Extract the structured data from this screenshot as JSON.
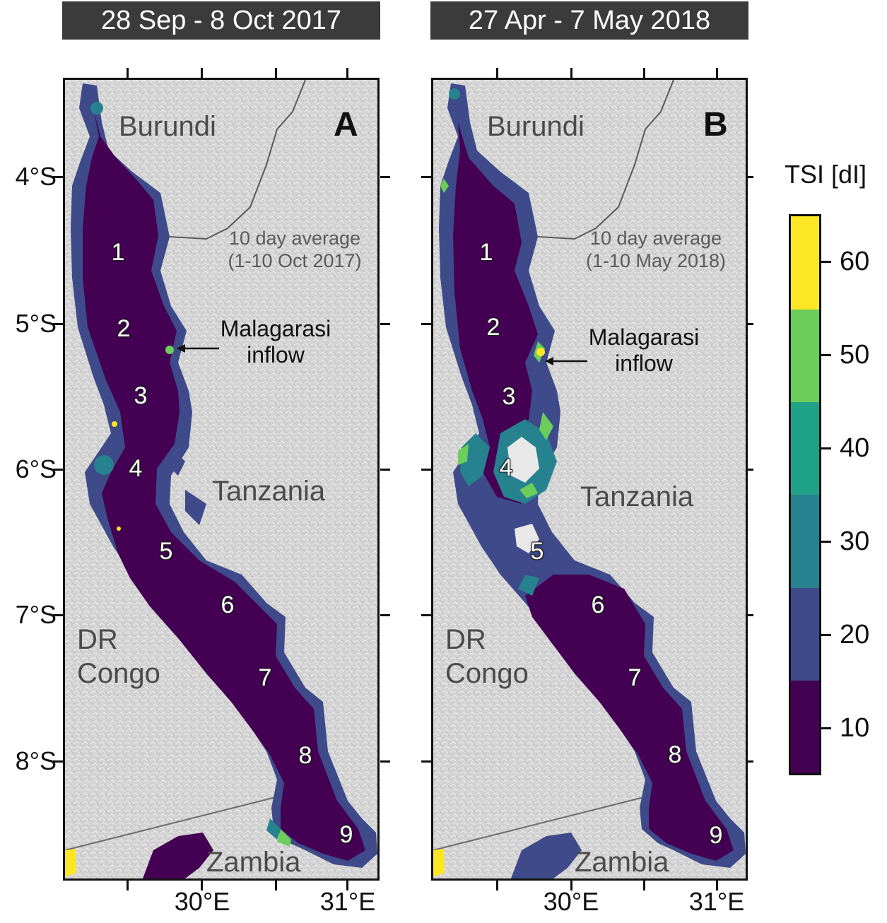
{
  "panels": [
    {
      "period": "28 Sep - 8 Oct 2017",
      "letter": "A",
      "note_line1": "10 day average",
      "note_line2": "(1-10 Oct 2017)",
      "inflow_line1": "Malagarasi",
      "inflow_line2": "inflow"
    },
    {
      "period": "27 Apr - 7 May 2018",
      "letter": "B",
      "note_line1": "10 day average",
      "note_line2": "(1-10 May 2018)",
      "inflow_line1": "Malagarasi",
      "inflow_line2": "inflow"
    }
  ],
  "countries": {
    "burundi": "Burundi",
    "tanzania": "Tanzania",
    "drc_line1": "DR",
    "drc_line2": "Congo",
    "zambia": "Zambia"
  },
  "stations": [
    "1",
    "2",
    "3",
    "4",
    "5",
    "6",
    "7",
    "8",
    "9"
  ],
  "axes": {
    "latitudes": [
      "4°S",
      "5°S",
      "6°S",
      "7°S",
      "8°S"
    ],
    "longitudes": [
      "30°E",
      "31°E"
    ]
  },
  "colorbar": {
    "title": "TSI [dI]",
    "ticks": [
      "10",
      "20",
      "30",
      "40",
      "50",
      "60"
    ],
    "colors": [
      "#440154",
      "#3e4a89",
      "#26828e",
      "#1fa187",
      "#6ccd5a",
      "#fde725"
    ]
  },
  "colors": {
    "land": "#d4d4d4",
    "banner": "#3b3b3b",
    "lake_low": "#440154",
    "lake_mid": "#3e4a89",
    "lake_teal": "#26828e",
    "lake_green": "#6ccd5a",
    "lake_high": "#fde725",
    "border_line": "#5a5a5a"
  }
}
